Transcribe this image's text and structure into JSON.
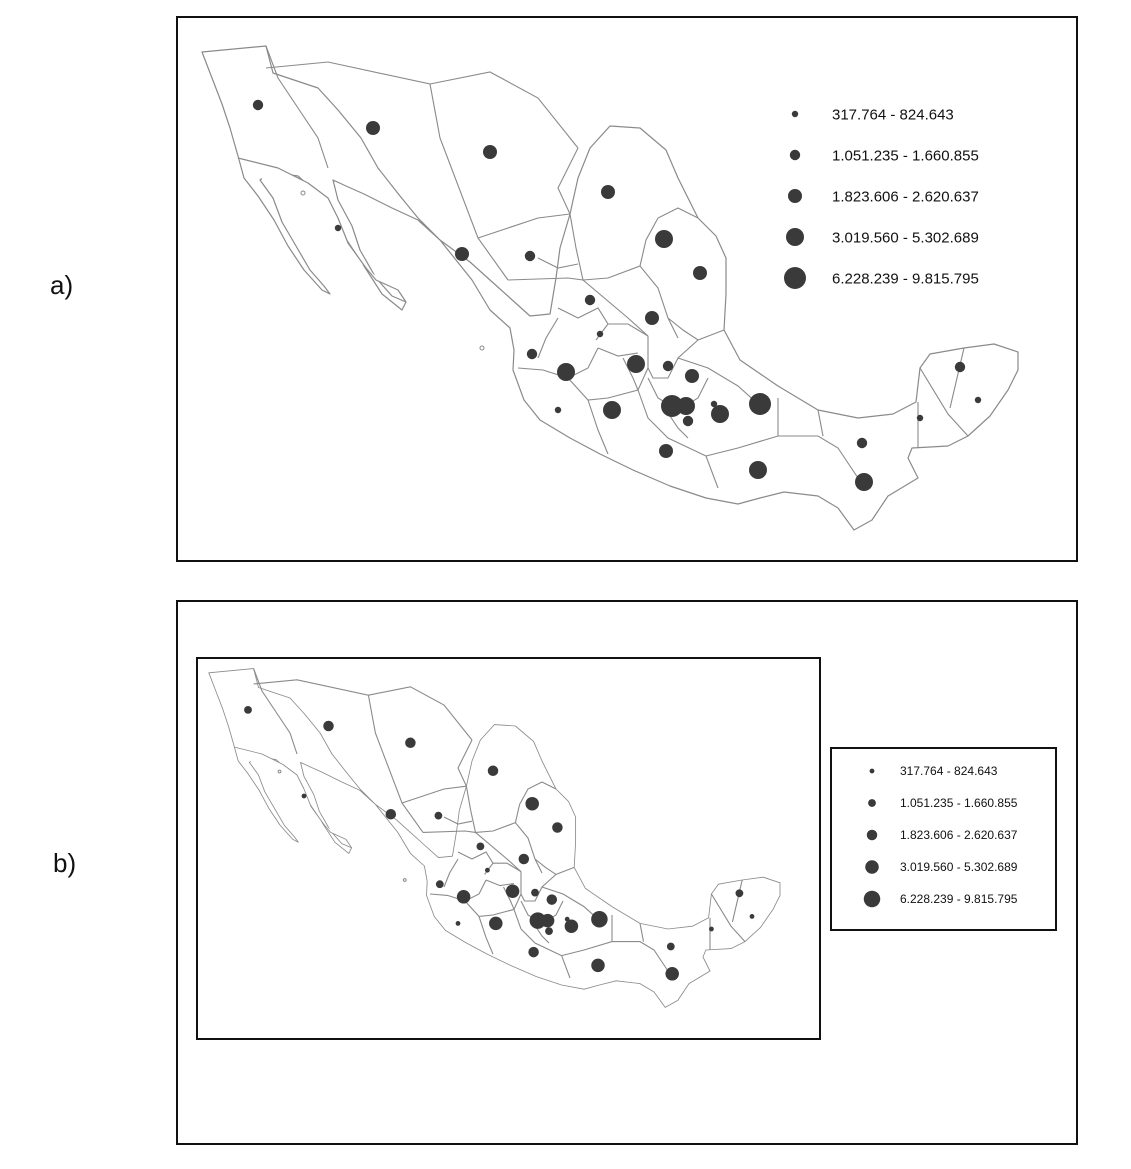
{
  "panels": [
    {
      "label": "a)"
    },
    {
      "label": "b)"
    }
  ],
  "legend": {
    "classes": [
      {
        "label": "317.764 - 824.643",
        "size": 1
      },
      {
        "label": "1.051.235 - 1.660.855",
        "size": 2
      },
      {
        "label": "1.823.606 - 2.620.637",
        "size": 3
      },
      {
        "label": "3.019.560 - 5.302.689",
        "size": 4
      },
      {
        "label": "6.228.239 - 9.815.795",
        "size": 5
      }
    ]
  },
  "colors": {
    "symbol": "#3a3a3a",
    "boundary": "#8a8a8a",
    "frame": "#111111"
  }
}
